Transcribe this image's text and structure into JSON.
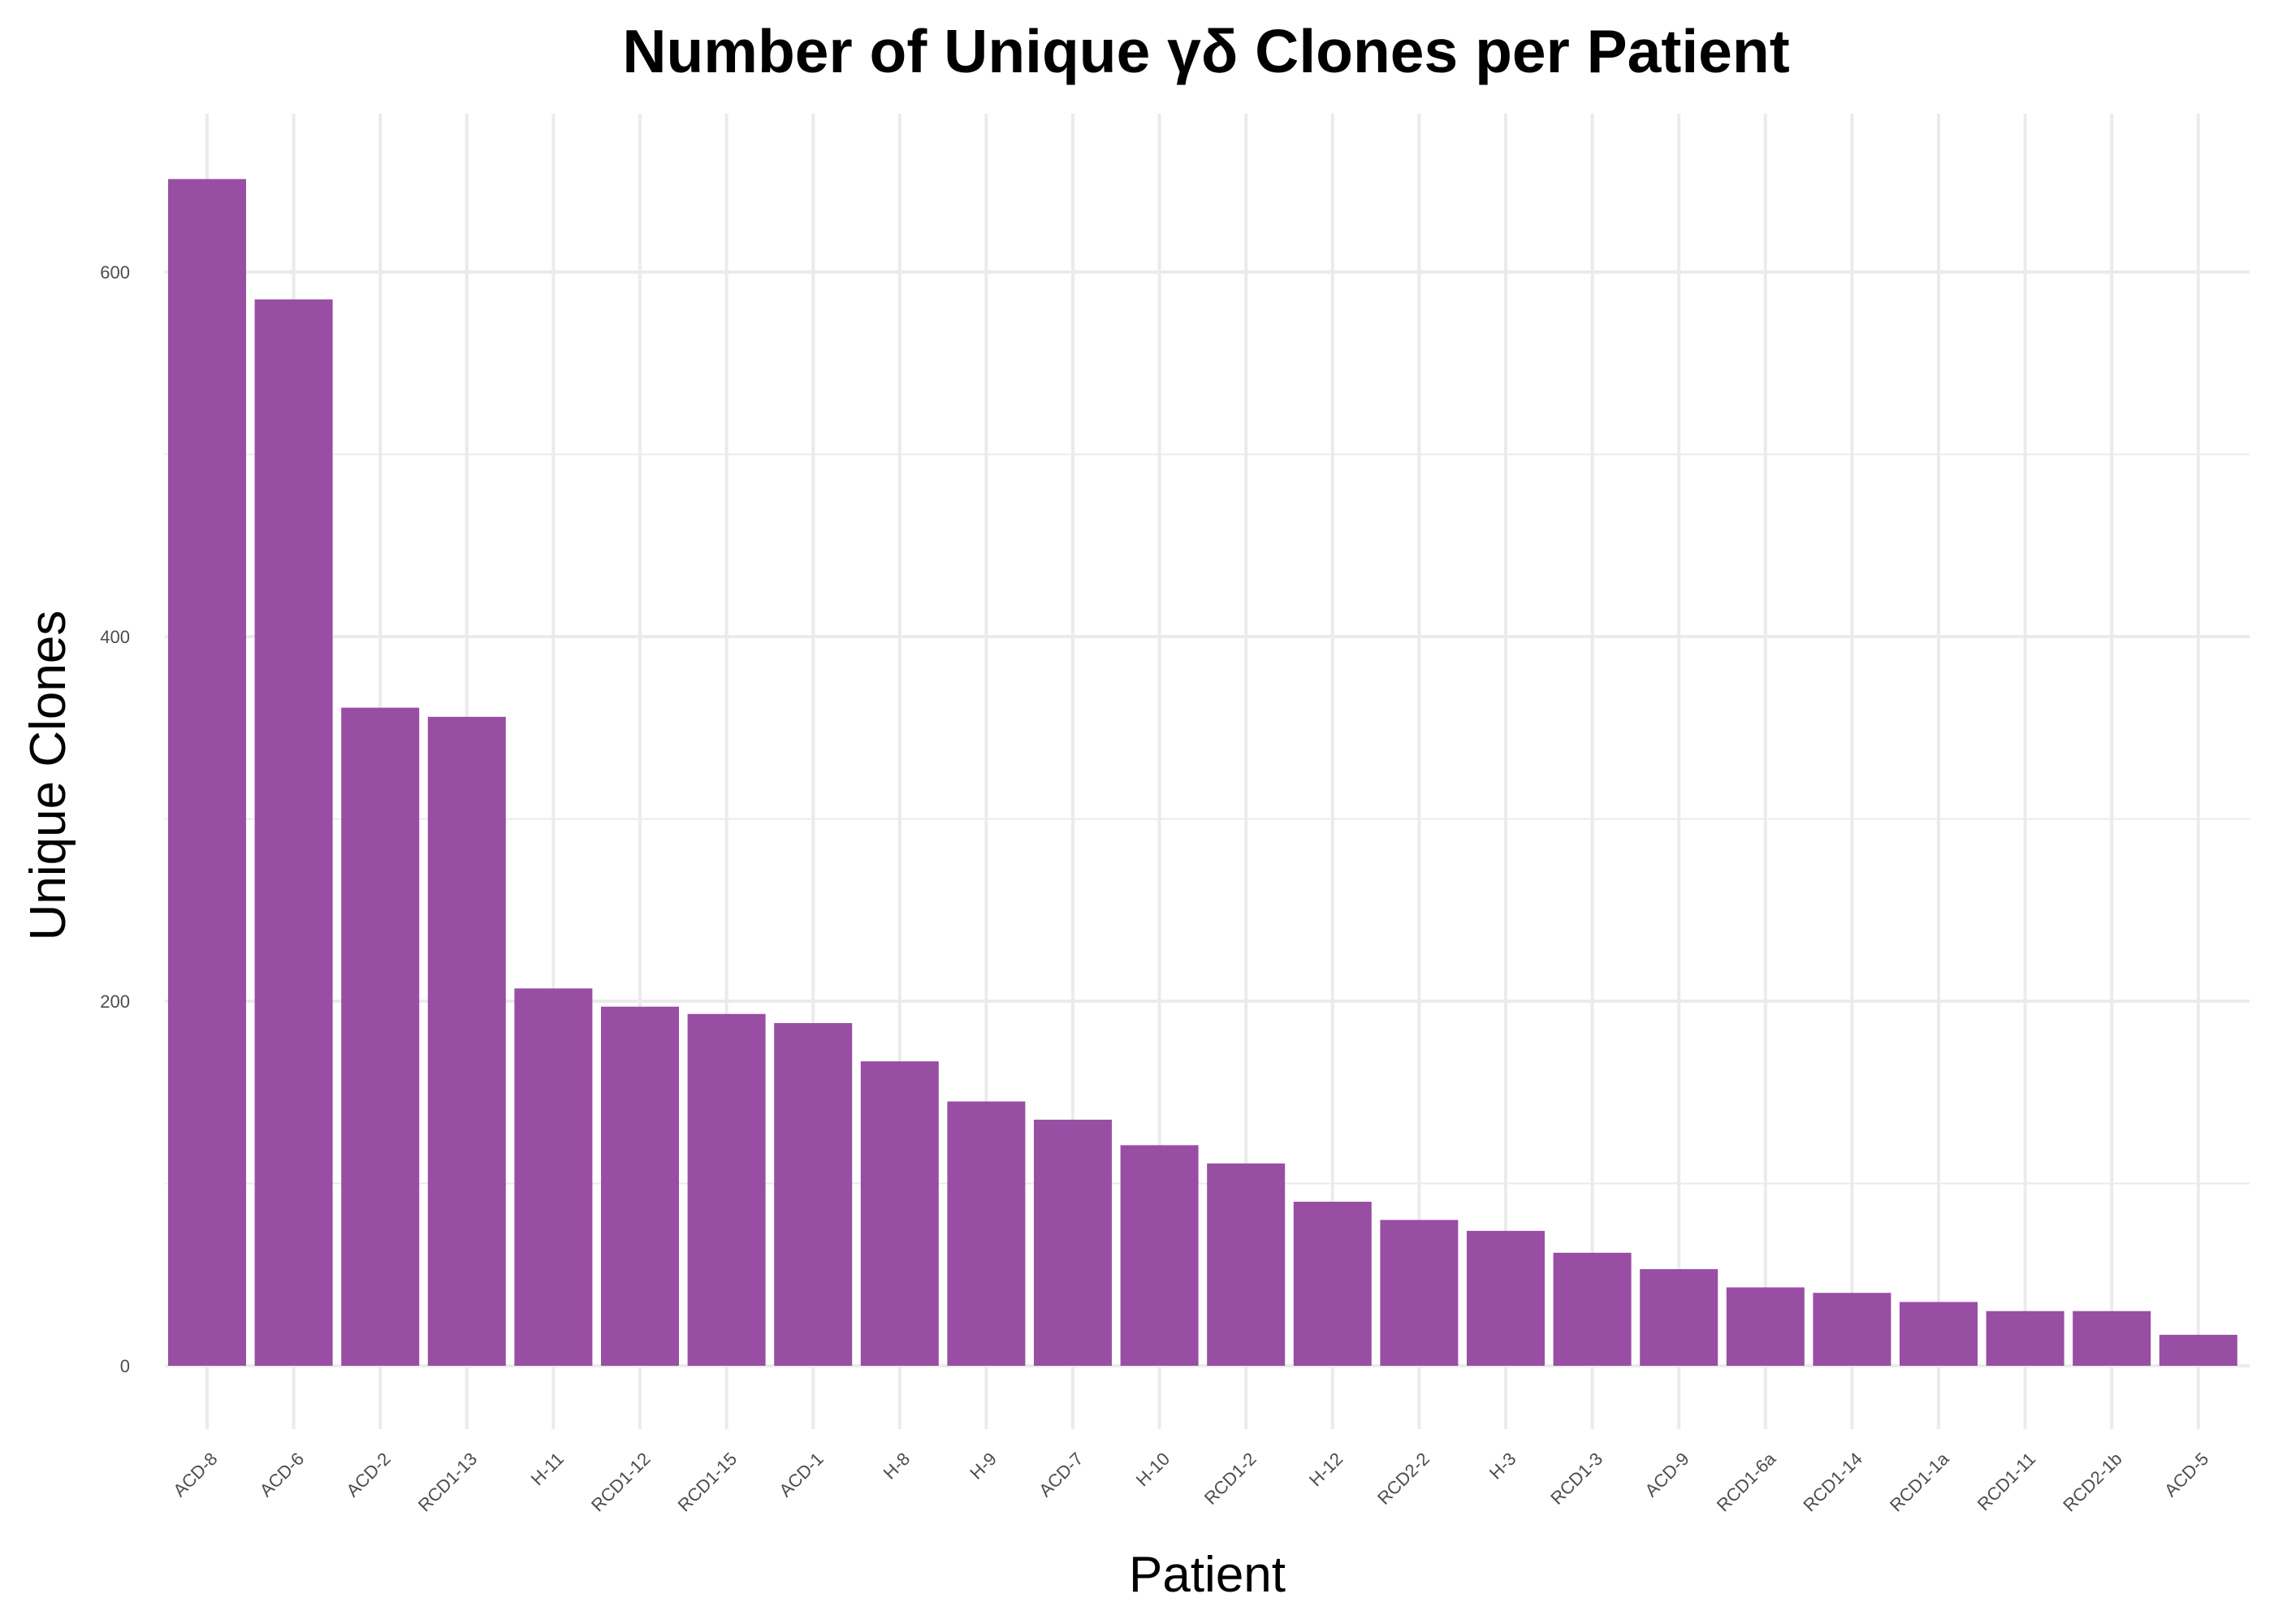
{
  "chart_data": {
    "type": "bar",
    "title": "Number of Unique γδ Clones per Patient",
    "xlabel": "Patient",
    "ylabel": "Unique Clones",
    "categories": [
      "ACD-8",
      "ACD-6",
      "ACD-2",
      "RCD1-13",
      "H-11",
      "RCD1-12",
      "RCD1-15",
      "ACD-1",
      "H-8",
      "H-9",
      "ACD-7",
      "H-10",
      "RCD1-2",
      "H-12",
      "RCD2-2",
      "H-3",
      "RCD1-3",
      "ACD-9",
      "RCD1-6a",
      "RCD1-14",
      "RCD1-1a",
      "RCD1-11",
      "RCD2-1b",
      "ACD-5"
    ],
    "values": [
      651,
      585,
      361,
      356,
      207,
      197,
      193,
      188,
      167,
      145,
      135,
      121,
      111,
      90,
      80,
      74,
      62,
      53,
      43,
      40,
      35,
      30,
      30,
      17
    ],
    "ylim": [
      0,
      680
    ],
    "yticks": [
      0,
      200,
      400,
      600
    ],
    "grid": true,
    "bar_color": "#984ea3",
    "grid_color": "#ebebeb"
  }
}
